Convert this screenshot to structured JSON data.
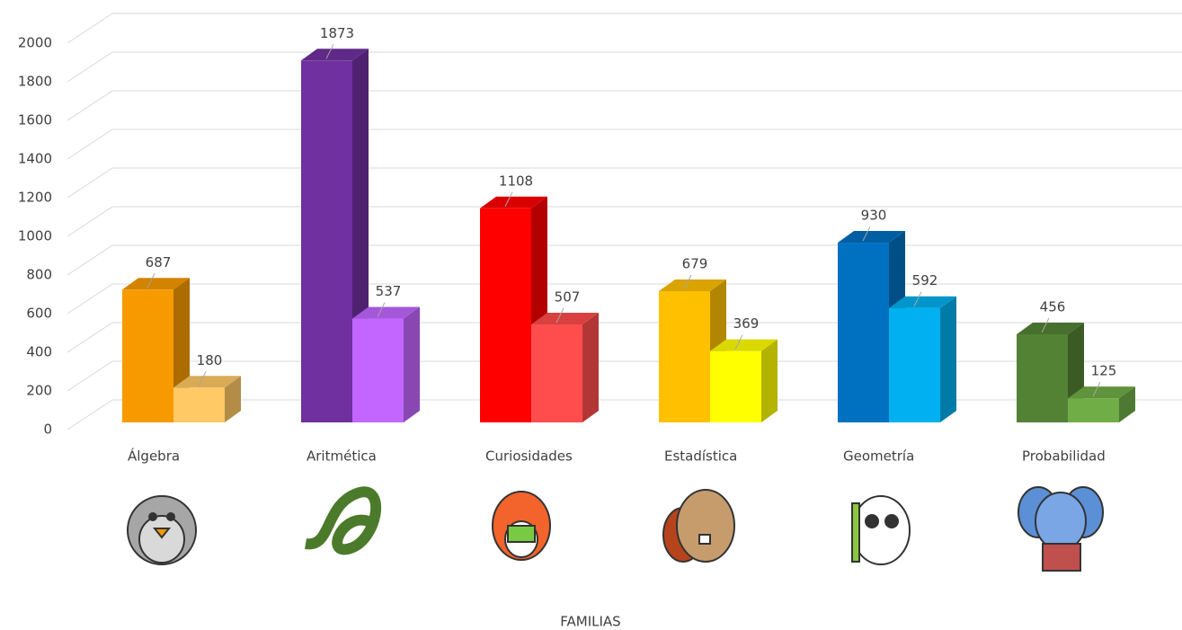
{
  "chart_data": {
    "type": "bar3d",
    "x_label": "FAMILIAS",
    "categories": [
      "Álgebra",
      "Aritmética",
      "Curiosidades",
      "Estadística",
      "Geometría",
      "Probabilidad"
    ],
    "series": [
      {
        "values": [
          687,
          1873,
          1108,
          679,
          930,
          456
        ],
        "colors": [
          "#f79a00",
          "#7030a0",
          "#ff0000",
          "#ffc000",
          "#0070c0",
          "#548235"
        ]
      },
      {
        "values": [
          180,
          537,
          507,
          369,
          592,
          125
        ],
        "colors": [
          "#ffc966",
          "#c266ff",
          "#ff4d4d",
          "#ffff00",
          "#00b0f0",
          "#70ad47"
        ]
      }
    ],
    "ylim": [
      0,
      2000
    ],
    "yticks": [
      0,
      200,
      400,
      600,
      800,
      1000,
      1200,
      1400,
      1600,
      1800,
      2000
    ],
    "grid": true
  }
}
